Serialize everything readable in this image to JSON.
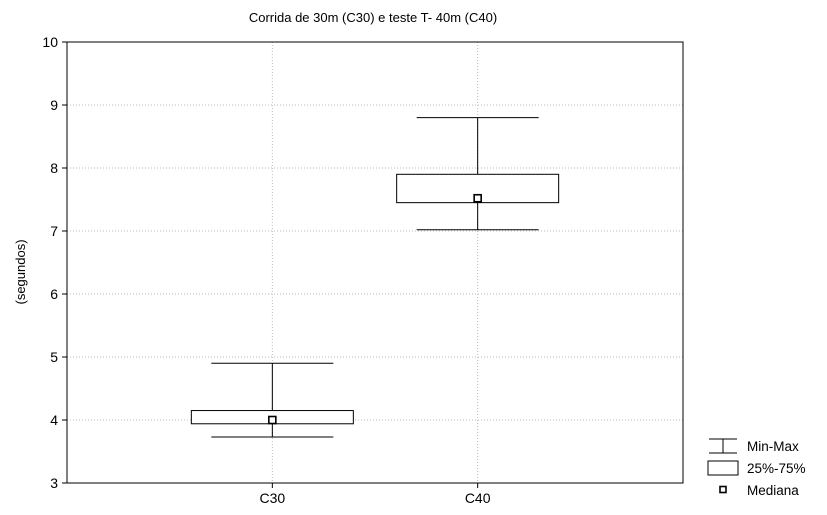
{
  "chart_data": {
    "type": "box",
    "title": "Corrida de 30m (C30) e teste T- 40m (C40)",
    "xlabel": "",
    "ylabel": "(segundos)",
    "ylim": [
      3,
      10
    ],
    "yticks": [
      3,
      4,
      5,
      6,
      7,
      8,
      9,
      10
    ],
    "categories": [
      "C30",
      "C40"
    ],
    "boxes": [
      {
        "category": "C30",
        "min": 3.73,
        "q1": 3.94,
        "median": 4.0,
        "q3": 4.15,
        "max": 4.9
      },
      {
        "category": "C40",
        "min": 7.02,
        "q1": 7.45,
        "median": 7.52,
        "q3": 7.9,
        "max": 8.8
      }
    ],
    "grid": true,
    "legend": {
      "position": "bottom-right",
      "entries": [
        "Min-Max",
        "25%-75%",
        "Mediana"
      ]
    }
  }
}
